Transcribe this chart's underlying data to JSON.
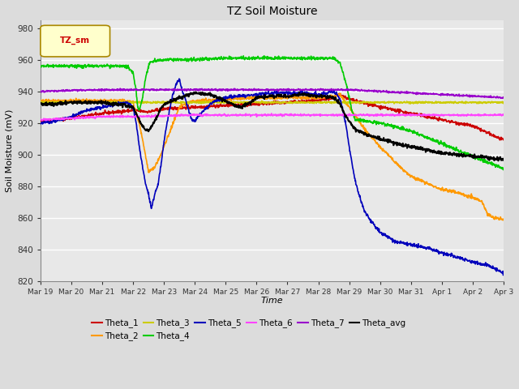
{
  "title": "TZ Soil Moisture",
  "xlabel": "Time",
  "ylabel": "Soil Moisture (mV)",
  "ylim": [
    820,
    985
  ],
  "yticks": [
    820,
    840,
    860,
    880,
    900,
    920,
    940,
    960,
    980
  ],
  "background_color": "#dcdcdc",
  "plot_bg_color": "#e8e8e8",
  "grid_color": "#ffffff",
  "x_labels": [
    "Mar 19",
    "Mar 20",
    "Mar 21",
    "Mar 22",
    "Mar 23",
    "Mar 24",
    "Mar 25",
    "Mar 26",
    "Mar 27",
    "Mar 28",
    "Mar 29",
    "Mar 30",
    "Mar 31",
    "Apr 1",
    "Apr 2",
    "Apr 3"
  ],
  "legend_label_box": "TZ_sm",
  "legend_box_color": "#ffffcc",
  "legend_box_border": "#aa8800",
  "series_order": [
    "Theta_1",
    "Theta_2",
    "Theta_3",
    "Theta_4",
    "Theta_5",
    "Theta_6",
    "Theta_7",
    "Theta_avg"
  ],
  "series": {
    "Theta_1": {
      "color": "#cc0000",
      "linewidth": 1.2
    },
    "Theta_2": {
      "color": "#ff9900",
      "linewidth": 1.2
    },
    "Theta_3": {
      "color": "#cccc00",
      "linewidth": 1.2
    },
    "Theta_4": {
      "color": "#00cc00",
      "linewidth": 1.2
    },
    "Theta_5": {
      "color": "#0000bb",
      "linewidth": 1.2
    },
    "Theta_6": {
      "color": "#ff44ff",
      "linewidth": 1.2
    },
    "Theta_7": {
      "color": "#9900cc",
      "linewidth": 1.2
    },
    "Theta_avg": {
      "color": "#000000",
      "linewidth": 1.5
    }
  }
}
